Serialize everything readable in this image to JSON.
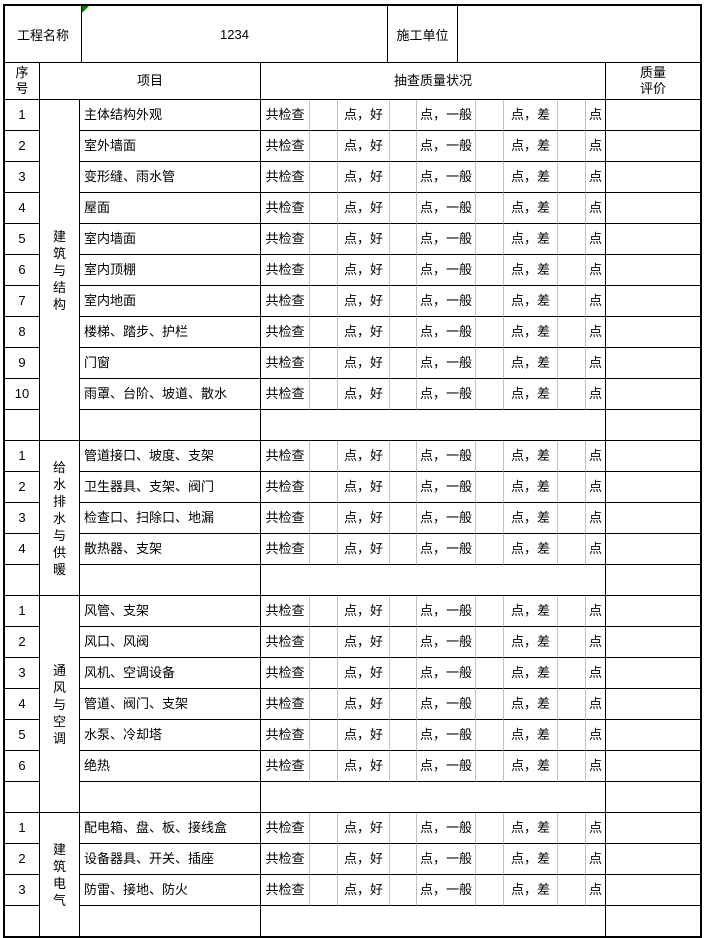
{
  "top": {
    "project_label": "工程名称",
    "project_value": "1234",
    "contractor_label": "施工单位",
    "contractor_value": ""
  },
  "header": {
    "no": "序\n号",
    "item": "项目",
    "inspection": "抽查质量状况",
    "evaluation": "质量\n评价"
  },
  "row_labels": {
    "total": "共检查",
    "good": "点，好",
    "fair": "点，一般",
    "poor": "点，差",
    "unit": "点"
  },
  "sections": [
    {
      "category": "建筑与结构",
      "items": [
        "主体结构外观",
        "室外墙面",
        "变形缝、雨水管",
        "屋面",
        "室内墙面",
        "室内顶棚",
        "室内地面",
        "楼梯、踏步、护栏",
        "门窗",
        "雨罩、台阶、坡道、散水"
      ]
    },
    {
      "category": "给水排水与供暖",
      "items": [
        "管道接口、坡度、支架",
        "卫生器具、支架、阀门",
        "检查口、扫除口、地漏",
        "散热器、支架"
      ]
    },
    {
      "category": "通风与空调",
      "items": [
        "风管、支架",
        "风口、风阀",
        "风机、空调设备",
        "管道、阀门、支架",
        "水泵、冷却塔",
        "绝热"
      ]
    },
    {
      "category": "建筑电气",
      "items": [
        "配电箱、盘、板、接线盒",
        "设备器具、开关、插座",
        "防雷、接地、防火"
      ]
    }
  ],
  "colors": {
    "border": "#000000",
    "gridline": "#c0c0c0",
    "flag_indicator": "#008000",
    "background": "#ffffff"
  }
}
